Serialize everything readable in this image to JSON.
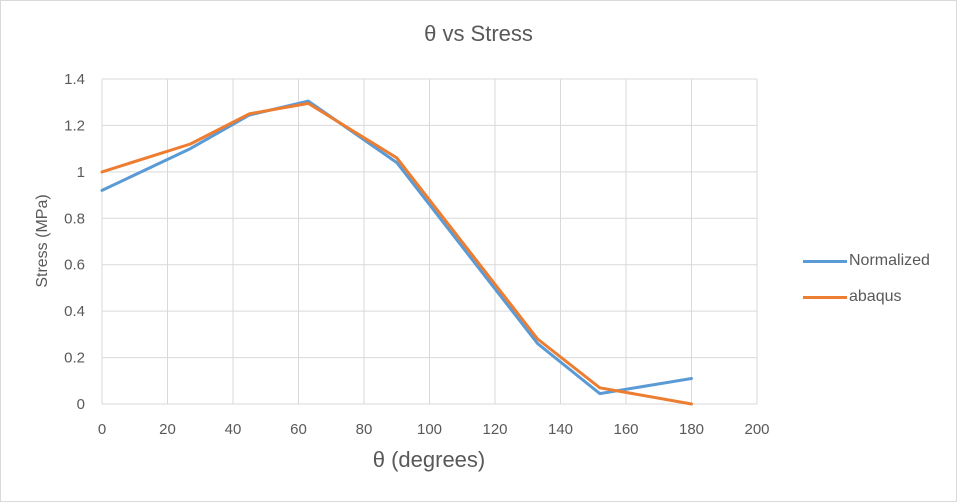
{
  "chart_data": {
    "type": "line",
    "title": "θ vs Stress",
    "xlabel": "θ (degrees)",
    "ylabel": "Stress (MPa)",
    "xlim": [
      0,
      200
    ],
    "ylim": [
      0,
      1.4
    ],
    "x_ticks": [
      "0",
      "20",
      "40",
      "60",
      "80",
      "100",
      "120",
      "140",
      "160",
      "180",
      "200"
    ],
    "y_ticks": [
      "0",
      "0.2",
      "0.4",
      "0.6",
      "0.8",
      "1",
      "1.2",
      "1.4"
    ],
    "grid": true,
    "legend_position": "right",
    "series": [
      {
        "name": "Normalized",
        "color": "#5b9bd5",
        "x": [
          0,
          27,
          45,
          63,
          90,
          117,
          133,
          152,
          180
        ],
        "y": [
          0.92,
          1.1,
          1.245,
          1.305,
          1.04,
          0.55,
          0.26,
          0.045,
          0.11
        ]
      },
      {
        "name": "abaqus",
        "color": "#ed7d31",
        "x": [
          0,
          27,
          45,
          63,
          90,
          117,
          133,
          152,
          180
        ],
        "y": [
          1.0,
          1.12,
          1.25,
          1.295,
          1.06,
          0.57,
          0.28,
          0.07,
          0.0
        ]
      }
    ]
  }
}
